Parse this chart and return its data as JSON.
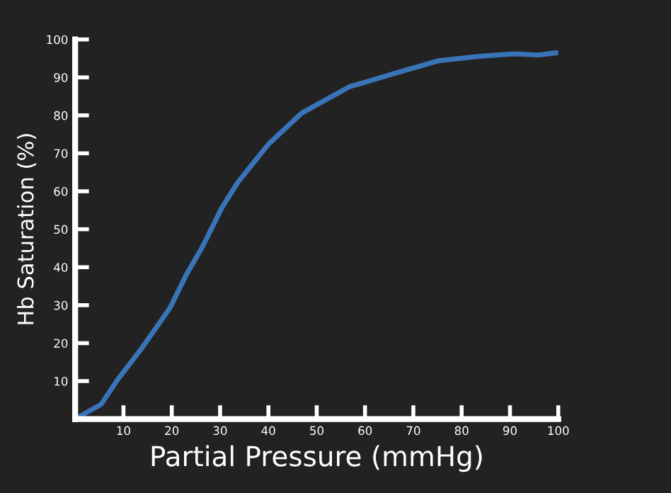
{
  "chart_data": {
    "type": "line",
    "xlabel": "Partial Pressure (mmHg)",
    "ylabel": "Hb Saturation (%)",
    "x": [
      0.5,
      5.4,
      8.8,
      13.7,
      19.6,
      23,
      26.4,
      30.3,
      33.7,
      40,
      46.9,
      56.7,
      66.5,
      75.3,
      84,
      90.9,
      95.8,
      99.7
    ],
    "series": [
      {
        "color": "#3a74b8",
        "values": [
          0.4,
          3.9,
          10.4,
          18.5,
          29.2,
          38,
          45.5,
          55.5,
          62.4,
          72.4,
          80.6,
          87.5,
          91.2,
          94.4,
          95.6,
          96.2,
          95.9,
          96.5
        ]
      }
    ],
    "xlim": [
      0,
      100
    ],
    "ylim": [
      0,
      100
    ],
    "xticks": [
      10,
      20,
      30,
      40,
      50,
      60,
      70,
      80,
      90,
      100
    ],
    "yticks": [
      10,
      20,
      30,
      40,
      50,
      60,
      70,
      80,
      90,
      100
    ],
    "grid": false,
    "legend": false,
    "marker": "none",
    "line_style": "solid"
  }
}
